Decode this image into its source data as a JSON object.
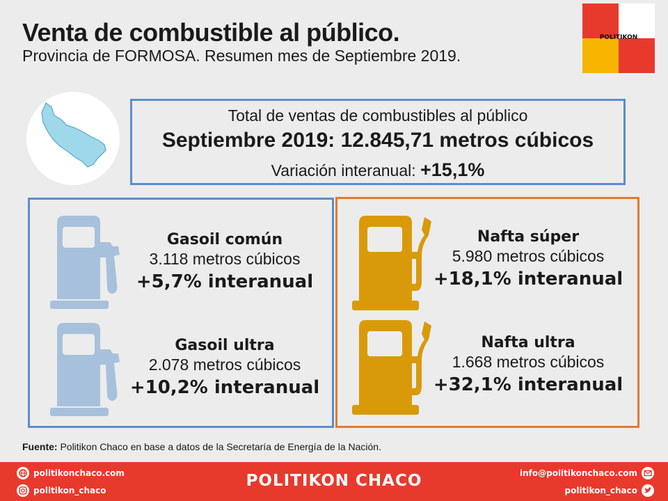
{
  "header": {
    "title": "Venta de combustible al público.",
    "subtitle": "Provincia de FORMOSA. Resumen mes de Septiembre 2019."
  },
  "logo": {
    "text": "POLITIKON",
    "colors": [
      "#e8392d",
      "#f7b500"
    ]
  },
  "summary": {
    "line1": "Total de ventas de combustibles al público",
    "line2": "Septiembre  2019:  12.845,71  metros  cúbicos",
    "variation_label": "Variación interanual: ",
    "variation_value": "+15,1%"
  },
  "fuels": {
    "gasoil_comun": {
      "name": "Gasoil común",
      "volume": "3.118 metros cúbicos",
      "variation": "+5,7% interanual"
    },
    "gasoil_ultra": {
      "name": "Gasoil ultra",
      "volume": "2.078 metros cúbicos",
      "variation": "+10,2% interanual"
    },
    "nafta_super": {
      "name": "Nafta súper",
      "volume": "5.980 metros cúbicos",
      "variation": "+18,1% interanual"
    },
    "nafta_ultra": {
      "name": "Nafta ultra",
      "volume": "1.668 metros cúbicos",
      "variation": "+32,1% interanual"
    }
  },
  "source": {
    "label": "Fuente:",
    "text": " Politikon Chaco en base a datos de la Secretaría  de Energía de la Nación."
  },
  "footer": {
    "brand": "POLITIKON CHACO",
    "website": "politikonchaco.com",
    "instagram": "politikon_chaco",
    "email": "info@politikonchaco.com",
    "twitter": "politikon_chaco"
  },
  "colors": {
    "gasoil_icon": "#a7c1dc",
    "nafta_icon": "#d99a0a",
    "blue_border": "#5b8ecb",
    "orange_border": "#e07b30",
    "footer_bg": "#e8392d"
  }
}
